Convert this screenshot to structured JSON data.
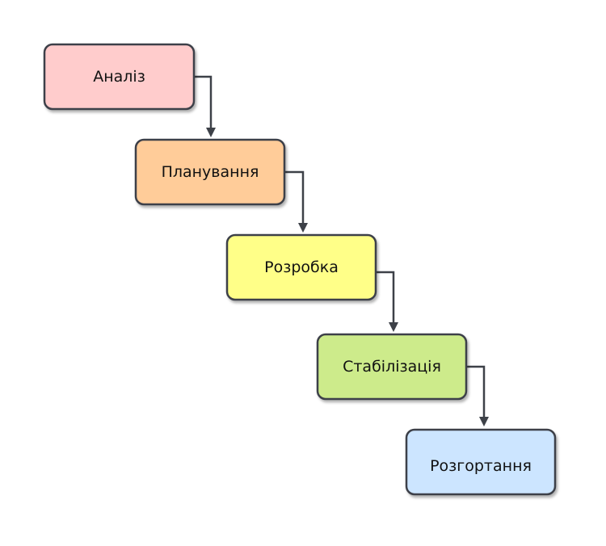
{
  "stages": [
    {
      "label": "Аналіз",
      "color": "#ffcccc"
    },
    {
      "label": "Планування",
      "color": "#ffcc99"
    },
    {
      "label": "Розробка",
      "color": "#ffff88"
    },
    {
      "label": "Стабілізація",
      "color": "#cdeb8b"
    },
    {
      "label": "Розгортання",
      "color": "#cce5ff"
    }
  ]
}
